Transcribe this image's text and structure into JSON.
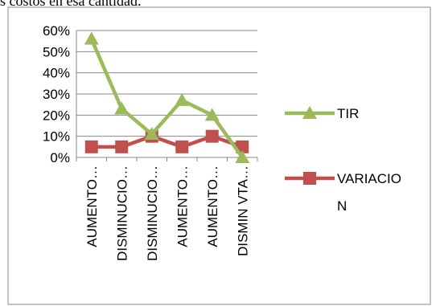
{
  "header": {
    "text": "s costos en esa cantidad."
  },
  "chart_data": {
    "type": "line",
    "categories": [
      "AUMENTO…",
      "DISMINUCIO…",
      "DISMINUCIO…",
      "AUMENTO…",
      "AUMENTO…",
      "DISMIN VTA…"
    ],
    "ylim": [
      0,
      0.6
    ],
    "yticks": [
      "0%",
      "10%",
      "20%",
      "30%",
      "40%",
      "50%",
      "60%"
    ],
    "grid": true,
    "legend_position": "right",
    "series": [
      {
        "name": "TIR",
        "legend_lines": [
          "TIR"
        ],
        "color": "#9bbb59",
        "marker": "triangle",
        "values": [
          0.56,
          0.23,
          0.11,
          0.27,
          0.2,
          0.0
        ]
      },
      {
        "name": "VARIACION",
        "legend_lines": [
          "VARIACIO",
          "N"
        ],
        "color": "#c0504d",
        "marker": "square",
        "values": [
          0.05,
          0.05,
          0.1,
          0.05,
          0.1,
          0.05
        ]
      }
    ]
  }
}
